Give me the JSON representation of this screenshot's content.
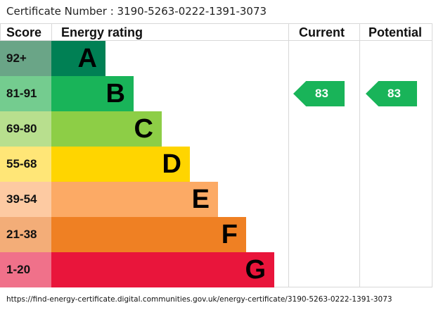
{
  "certificate_label": "Certificate Number : 3190-5263-0222-1391-3073",
  "url": "https://find-energy-certificate.digital.communities.gov.uk/energy-certificate/3190-5263-0222-1391-3073",
  "chart_data": {
    "type": "bar",
    "headers": {
      "score": "Score",
      "rating": "Energy rating",
      "current": "Current",
      "potential": "Potential"
    },
    "bands": [
      {
        "letter": "A",
        "range": "92+",
        "color": "#008054",
        "score_color": "#6aa587"
      },
      {
        "letter": "B",
        "range": "81-91",
        "color": "#19b459",
        "score_color": "#74cc8f"
      },
      {
        "letter": "C",
        "range": "69-80",
        "color": "#8dce46",
        "score_color": "#b8df8e"
      },
      {
        "letter": "D",
        "range": "55-68",
        "color": "#ffd500",
        "score_color": "#ffe677"
      },
      {
        "letter": "E",
        "range": "39-54",
        "color": "#fcaa65",
        "score_color": "#fdcaa2"
      },
      {
        "letter": "F",
        "range": "21-38",
        "color": "#ef8023",
        "score_color": "#f3ad78"
      },
      {
        "letter": "G",
        "range": "1-20",
        "color": "#e9153b",
        "score_color": "#f0718a"
      }
    ],
    "current": {
      "value": "83",
      "band": "B",
      "color": "#19b459"
    },
    "potential": {
      "value": "83",
      "band": "B",
      "color": "#19b459"
    }
  }
}
